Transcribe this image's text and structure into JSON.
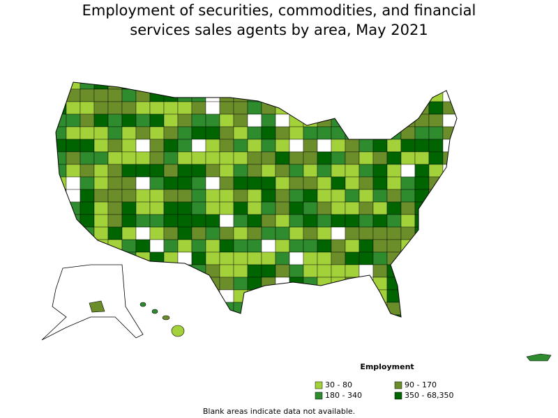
{
  "header": {
    "title": [
      "Employment of securities, commodities, and financial",
      "services sales agents by area, May 2021"
    ]
  },
  "legend": {
    "title": "Employment",
    "items": [
      {
        "label": "30 - 80",
        "color": "#a3d13a"
      },
      {
        "label": "90 - 170",
        "color": "#6b8e2a"
      },
      {
        "label": "180 - 340",
        "color": "#2e8b2e"
      },
      {
        "label": "350 - 68,350",
        "color": "#006400"
      }
    ]
  },
  "note": "Blank areas indicate data not available."
}
